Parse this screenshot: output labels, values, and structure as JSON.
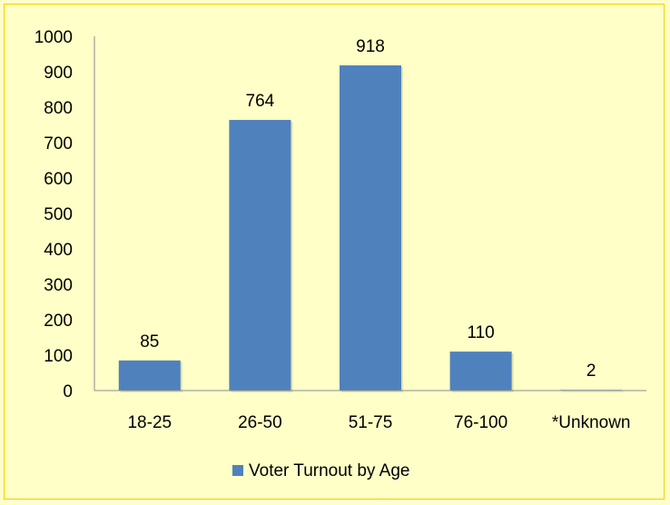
{
  "chart_data": {
    "type": "bar",
    "categories": [
      "18-25",
      "26-50",
      "51-75",
      "76-100",
      "*Unknown"
    ],
    "series": [
      {
        "name": "Voter Turnout by Age",
        "values": [
          85,
          764,
          918,
          110,
          2
        ]
      }
    ],
    "data_labels": [
      "85",
      "764",
      "918",
      "110",
      "2"
    ],
    "ylim": [
      0,
      1000
    ],
    "yticks": [
      0,
      100,
      200,
      300,
      400,
      500,
      600,
      700,
      800,
      900,
      1000
    ],
    "ytick_labels": [
      "0",
      "100",
      "200",
      "300",
      "400",
      "500",
      "600",
      "700",
      "800",
      "900",
      "1000"
    ],
    "grid": false,
    "legend_position": "bottom",
    "bar_color": "#4f81bd",
    "background_color": "#ffffc8",
    "border_color": "#f0d200"
  }
}
